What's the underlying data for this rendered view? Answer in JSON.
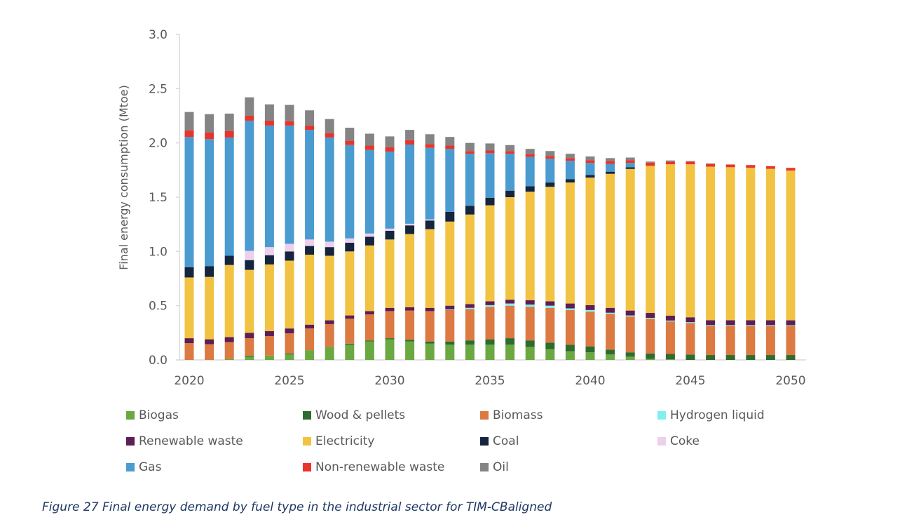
{
  "chart_data": {
    "type": "bar",
    "stacked": true,
    "title": "",
    "xlabel": "",
    "ylabel": "Final energy consumption (Mtoe)",
    "ylim": [
      0,
      3.0
    ],
    "yticks": [
      "0.0",
      "0.5",
      "1.0",
      "1.5",
      "2.0",
      "2.5",
      "3.0"
    ],
    "xtick_labels": [
      "2020",
      "2025",
      "2030",
      "2035",
      "2040",
      "2045",
      "2050"
    ],
    "grid": false,
    "legend_position": "bottom",
    "categories": [
      "2020",
      "2021",
      "2022",
      "2023",
      "2024",
      "2025",
      "2026",
      "2027",
      "2028",
      "2029",
      "2030",
      "2031",
      "2032",
      "2033",
      "2034",
      "2035",
      "2036",
      "2037",
      "2038",
      "2039",
      "2040",
      "2041",
      "2042",
      "2043",
      "2044",
      "2045",
      "2046",
      "2047",
      "2048",
      "2049",
      "2050"
    ],
    "series": [
      {
        "name": "Biogas",
        "color": "#6aa842",
        "values": [
          0.0,
          0.0,
          0.01,
          0.03,
          0.04,
          0.05,
          0.09,
          0.12,
          0.14,
          0.17,
          0.19,
          0.17,
          0.15,
          0.14,
          0.14,
          0.14,
          0.14,
          0.12,
          0.1,
          0.08,
          0.07,
          0.05,
          0.03,
          0.01,
          0.005,
          0.0,
          0.0,
          0.0,
          0.0,
          0.0,
          0.0
        ]
      },
      {
        "name": "Wood & pellets",
        "color": "#2e6b2e",
        "values": [
          0.0,
          0.0,
          0.0,
          0.01,
          0.0,
          0.01,
          0.0,
          0.0,
          0.01,
          0.01,
          0.01,
          0.015,
          0.02,
          0.03,
          0.04,
          0.05,
          0.06,
          0.06,
          0.06,
          0.06,
          0.055,
          0.045,
          0.04,
          0.05,
          0.05,
          0.05,
          0.045,
          0.045,
          0.045,
          0.045,
          0.045
        ]
      },
      {
        "name": "Biomass",
        "color": "#dc7a42",
        "values": [
          0.155,
          0.145,
          0.155,
          0.16,
          0.18,
          0.185,
          0.2,
          0.21,
          0.23,
          0.24,
          0.25,
          0.27,
          0.28,
          0.29,
          0.29,
          0.3,
          0.3,
          0.31,
          0.32,
          0.32,
          0.32,
          0.33,
          0.33,
          0.32,
          0.3,
          0.29,
          0.27,
          0.27,
          0.27,
          0.27,
          0.27
        ]
      },
      {
        "name": "Hydrogen liquid",
        "color": "#7ff0f0",
        "values": [
          0,
          0,
          0,
          0,
          0,
          0,
          0,
          0,
          0,
          0,
          0,
          0,
          0,
          0.005,
          0.01,
          0.015,
          0.02,
          0.02,
          0.02,
          0.015,
          0.015,
          0.01,
          0.01,
          0.008,
          0.008,
          0.008,
          0.006,
          0.006,
          0.006,
          0.006,
          0.005
        ]
      },
      {
        "name": "Renewable waste",
        "color": "#5b1f55",
        "values": [
          0.045,
          0.045,
          0.045,
          0.05,
          0.045,
          0.045,
          0.035,
          0.035,
          0.03,
          0.03,
          0.03,
          0.03,
          0.03,
          0.035,
          0.035,
          0.035,
          0.035,
          0.04,
          0.04,
          0.045,
          0.045,
          0.045,
          0.045,
          0.045,
          0.045,
          0.045,
          0.045,
          0.045,
          0.045,
          0.045,
          0.045
        ]
      },
      {
        "name": "Electricity",
        "color": "#f2c242",
        "values": [
          0.56,
          0.575,
          0.665,
          0.58,
          0.615,
          0.625,
          0.645,
          0.595,
          0.59,
          0.605,
          0.63,
          0.675,
          0.725,
          0.775,
          0.825,
          0.885,
          0.945,
          1.0,
          1.055,
          1.115,
          1.175,
          1.235,
          1.305,
          1.355,
          1.395,
          1.41,
          1.415,
          1.41,
          1.405,
          1.395,
          1.38
        ]
      },
      {
        "name": "Coal",
        "color": "#15253f",
        "values": [
          0.095,
          0.1,
          0.085,
          0.09,
          0.085,
          0.085,
          0.08,
          0.08,
          0.08,
          0.08,
          0.08,
          0.08,
          0.08,
          0.09,
          0.08,
          0.07,
          0.06,
          0.05,
          0.04,
          0.03,
          0.025,
          0.02,
          0.015,
          0.0,
          0.0,
          0.0,
          0.0,
          0.0,
          0.0,
          0.0,
          0.0
        ]
      },
      {
        "name": "Coke",
        "color": "#ecd0ec",
        "values": [
          0.0,
          0.0,
          0.0,
          0.085,
          0.075,
          0.07,
          0.06,
          0.05,
          0.04,
          0.03,
          0.02,
          0.015,
          0.01,
          0.0,
          0.0,
          0.0,
          0.0,
          0.0,
          0.0,
          0.0,
          0.0,
          0.0,
          0.0,
          0.0,
          0.0,
          0.0,
          0.0,
          0.0,
          0.0,
          0.0,
          0.0
        ]
      },
      {
        "name": "Gas",
        "color": "#4a9bd0",
        "values": [
          1.2,
          1.17,
          1.09,
          1.2,
          1.12,
          1.09,
          1.01,
          0.96,
          0.86,
          0.77,
          0.71,
          0.73,
          0.66,
          0.58,
          0.48,
          0.41,
          0.34,
          0.27,
          0.22,
          0.17,
          0.11,
          0.07,
          0.04,
          0.0,
          0.0,
          0.0,
          0.0,
          0.0,
          0.0,
          0.0,
          0.0
        ]
      },
      {
        "name": "Non-renewable waste",
        "color": "#e8342a",
        "values": [
          0.06,
          0.06,
          0.06,
          0.045,
          0.045,
          0.04,
          0.04,
          0.04,
          0.04,
          0.04,
          0.04,
          0.04,
          0.035,
          0.03,
          0.025,
          0.025,
          0.025,
          0.025,
          0.025,
          0.025,
          0.025,
          0.025,
          0.025,
          0.03,
          0.025,
          0.025,
          0.025,
          0.025,
          0.025,
          0.025,
          0.025
        ]
      },
      {
        "name": "Oil",
        "color": "#848484",
        "values": [
          0.17,
          0.17,
          0.16,
          0.17,
          0.15,
          0.15,
          0.14,
          0.13,
          0.12,
          0.11,
          0.1,
          0.095,
          0.09,
          0.08,
          0.075,
          0.065,
          0.055,
          0.05,
          0.045,
          0.04,
          0.035,
          0.03,
          0.025,
          0.01,
          0.01,
          0.005,
          0.005,
          0.0,
          0.0,
          0.0,
          0.0
        ]
      }
    ]
  },
  "legend": {
    "items": [
      {
        "label": "Biogas",
        "color": "#6aa842"
      },
      {
        "label": "Wood & pellets",
        "color": "#2e6b2e"
      },
      {
        "label": "Biomass",
        "color": "#dc7a42"
      },
      {
        "label": "Hydrogen liquid",
        "color": "#7ff0f0"
      },
      {
        "label": "Renewable waste",
        "color": "#5b1f55"
      },
      {
        "label": "Electricity",
        "color": "#f2c242"
      },
      {
        "label": "Coal",
        "color": "#15253f"
      },
      {
        "label": "Coke",
        "color": "#ecd0ec"
      },
      {
        "label": "Gas",
        "color": "#4a9bd0"
      },
      {
        "label": "Non-renewable waste",
        "color": "#e8342a"
      },
      {
        "label": "Oil",
        "color": "#848484"
      }
    ]
  },
  "caption": "Figure 27 Final energy demand by fuel type in the industrial sector for TIM-CBaligned"
}
